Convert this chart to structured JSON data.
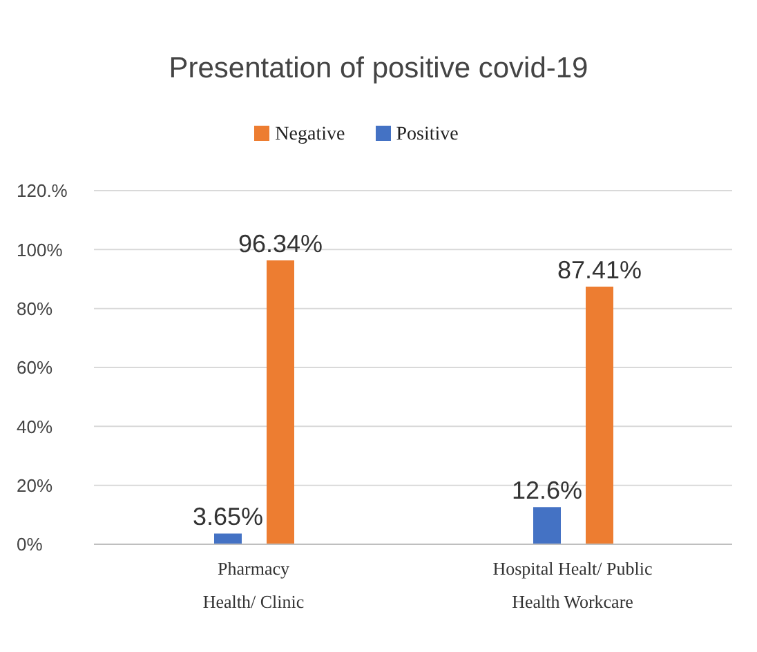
{
  "chart_data": {
    "type": "bar",
    "title": "Presentation of positive covid-19",
    "categories": [
      "Pharmacy Health/ Clinic",
      "Hospital Healt/ Public Health Workcare"
    ],
    "series": [
      {
        "name": "Positive",
        "color": "#4472c4",
        "values": [
          3.65,
          12.6
        ],
        "value_labels": [
          "3.65%",
          "12.6%"
        ]
      },
      {
        "name": "Negative",
        "color": "#ed7d31",
        "values": [
          96.34,
          87.41
        ],
        "value_labels": [
          "96.34%",
          "87.41%"
        ]
      }
    ],
    "ylim": [
      0,
      120
    ],
    "yticks": [
      {
        "value": 0,
        "label": "0%"
      },
      {
        "value": 20,
        "label": "20%"
      },
      {
        "value": 40,
        "label": "40%"
      },
      {
        "value": 60,
        "label": "60%"
      },
      {
        "value": 80,
        "label": "80%"
      },
      {
        "value": 100,
        "label": "100%"
      },
      {
        "value": 120,
        "label": "120.%"
      }
    ],
    "grid": "y",
    "legend": "top"
  }
}
